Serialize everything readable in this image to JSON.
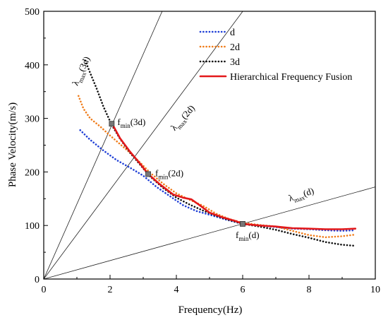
{
  "chart_data": {
    "type": "line",
    "xlabel": "Frequency(Hz)",
    "ylabel": "Phase Velocity(m/s)",
    "xlim": [
      0,
      10
    ],
    "ylim": [
      0,
      500
    ],
    "xticks": [
      "0",
      "2",
      "4",
      "6",
      "8",
      "10"
    ],
    "yticks": [
      "0",
      "100",
      "200",
      "300",
      "400",
      "500"
    ],
    "grid": false,
    "legend_position": "top-right",
    "series": [
      {
        "name": "d",
        "color": "#1f3fd6",
        "style": "dotted",
        "x": [
          1.1,
          1.4,
          1.8,
          2.2,
          2.6,
          3.0,
          3.4,
          3.8,
          4.2,
          4.6,
          5.0,
          5.5,
          6.0,
          6.5,
          7.0,
          7.5,
          8.0,
          8.5,
          9.0,
          9.4
        ],
        "y": [
          278,
          260,
          240,
          222,
          208,
          193,
          172,
          155,
          138,
          127,
          120,
          111,
          103,
          100,
          97,
          94,
          93,
          91,
          90,
          91
        ]
      },
      {
        "name": "2d",
        "color": "#f07c1a",
        "style": "dotted",
        "x": [
          1.05,
          1.2,
          1.4,
          1.7,
          2.0,
          2.3,
          2.6,
          2.9,
          3.2,
          3.6,
          4.0,
          4.4,
          4.8,
          5.2,
          5.6,
          6.0,
          6.5,
          7.0,
          7.5,
          8.0,
          8.5,
          9.0,
          9.4
        ],
        "y": [
          342,
          318,
          300,
          285,
          268,
          252,
          236,
          218,
          199,
          178,
          160,
          148,
          137,
          122,
          112,
          105,
          101,
          98,
          90,
          82,
          78,
          80,
          83
        ]
      },
      {
        "name": "3d",
        "color": "#111111",
        "style": "dotted",
        "x": [
          1.25,
          1.4,
          1.6,
          1.8,
          2.05,
          2.3,
          2.6,
          2.9,
          3.2,
          3.6,
          4.0,
          4.4,
          4.8,
          5.2,
          5.6,
          6.0,
          6.5,
          7.0,
          7.5,
          8.0,
          8.5,
          9.0,
          9.4
        ],
        "y": [
          408,
          385,
          355,
          322,
          288,
          262,
          236,
          214,
          192,
          170,
          152,
          139,
          128,
          118,
          110,
          103,
          98,
          92,
          84,
          77,
          69,
          64,
          62
        ]
      },
      {
        "name": "Hierarchical Frequency Fusion",
        "color": "#e3191b",
        "style": "solid",
        "x": [
          2.08,
          2.3,
          2.6,
          2.9,
          3.15,
          3.5,
          3.9,
          4.2,
          4.45,
          4.7,
          5.0,
          5.4,
          5.8,
          6.0,
          6.5,
          7.0,
          7.5,
          8.0,
          8.5,
          9.0,
          9.4
        ],
        "y": [
          288,
          263,
          238,
          216,
          196,
          177,
          158,
          152,
          149,
          138,
          124,
          115,
          108,
          103,
          100,
          98,
          95,
          94,
          93,
          93,
          94
        ]
      }
    ],
    "reference_lines": [
      {
        "slope": 140,
        "label_main": "λ",
        "label_sub": "max",
        "label_suffix": "(3d)"
      },
      {
        "slope": 83.3,
        "label_main": "λ",
        "label_sub": "max",
        "label_suffix": "(2d)"
      },
      {
        "slope": 17.2,
        "label_main": "λ",
        "label_sub": "max",
        "label_suffix": "(d)"
      }
    ],
    "markers": [
      {
        "x": 2.05,
        "y": 290,
        "label_main": "f",
        "label_sub": "min",
        "label_suffix": "(3d)"
      },
      {
        "x": 3.15,
        "y": 196,
        "label_main": "f",
        "label_sub": "min",
        "label_suffix": "(2d)"
      },
      {
        "x": 6.0,
        "y": 103,
        "label_main": "f",
        "label_sub": "min",
        "label_suffix": "(d)"
      }
    ]
  }
}
